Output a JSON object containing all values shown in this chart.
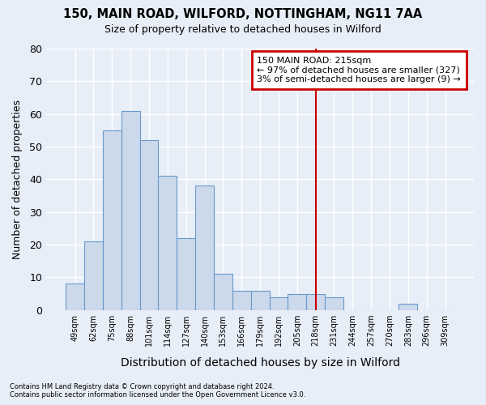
{
  "title1": "150, MAIN ROAD, WILFORD, NOTTINGHAM, NG11 7AA",
  "title2": "Size of property relative to detached houses in Wilford",
  "xlabel": "Distribution of detached houses by size in Wilford",
  "ylabel": "Number of detached properties",
  "categories": [
    "49sqm",
    "62sqm",
    "75sqm",
    "88sqm",
    "101sqm",
    "114sqm",
    "127sqm",
    "140sqm",
    "153sqm",
    "166sqm",
    "179sqm",
    "192sqm",
    "205sqm",
    "218sqm",
    "231sqm",
    "244sqm",
    "257sqm",
    "270sqm",
    "283sqm",
    "296sqm",
    "309sqm"
  ],
  "values": [
    8,
    21,
    55,
    61,
    52,
    41,
    22,
    38,
    11,
    6,
    6,
    4,
    5,
    5,
    4,
    0,
    0,
    0,
    2,
    0,
    0
  ],
  "bar_color": "#ccd9ea",
  "bar_edge_color": "#6699cc",
  "background_color": "#e8eef8",
  "grid_color": "#ffffff",
  "vline_x": 13,
  "vline_color": "#cc0000",
  "annotation_title": "150 MAIN ROAD: 215sqm",
  "annotation_line1": "← 97% of detached houses are smaller (327)",
  "annotation_line2": "3% of semi-detached houses are larger (9) →",
  "annotation_box_edgecolor": "#cc0000",
  "ylim": [
    0,
    80
  ],
  "yticks": [
    0,
    10,
    20,
    30,
    40,
    50,
    60,
    70,
    80
  ],
  "footnote1": "Contains HM Land Registry data © Crown copyright and database right 2024.",
  "footnote2": "Contains public sector information licensed under the Open Government Licence v3.0."
}
